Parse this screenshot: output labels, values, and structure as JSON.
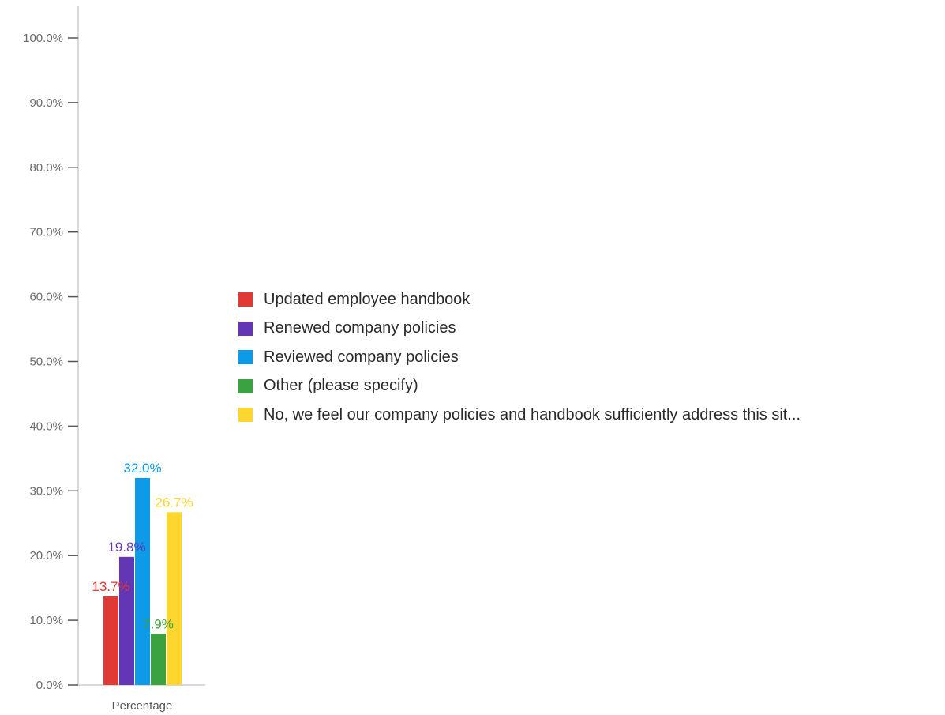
{
  "chart_data": {
    "type": "bar",
    "categories": [
      "Percentage"
    ],
    "series": [
      {
        "name": "Updated employee handbook",
        "values": [
          13.7
        ],
        "label": "13.7%",
        "color": "#e03a35"
      },
      {
        "name": "Renewed company policies",
        "values": [
          19.8
        ],
        "label": "19.8%",
        "color": "#6236b5"
      },
      {
        "name": "Reviewed company policies",
        "values": [
          32.0
        ],
        "label": "32.0%",
        "color": "#0d9ae8"
      },
      {
        "name": "Other (please specify)",
        "values": [
          7.9
        ],
        "label": "7.9%",
        "color": "#3aa33f"
      },
      {
        "name": "No, we feel our company policies and handbook sufficiently address this sit...",
        "values": [
          26.7
        ],
        "label": "26.7%",
        "color": "#fdd72f"
      }
    ],
    "yticks": [
      "0.0%",
      "10.0%",
      "20.0%",
      "30.0%",
      "40.0%",
      "50.0%",
      "60.0%",
      "70.0%",
      "80.0%",
      "90.0%",
      "100.0%"
    ],
    "ylim": [
      0,
      100
    ],
    "title": "",
    "xlabel": "",
    "ylabel": "",
    "grid": false,
    "legend_position": "right"
  }
}
